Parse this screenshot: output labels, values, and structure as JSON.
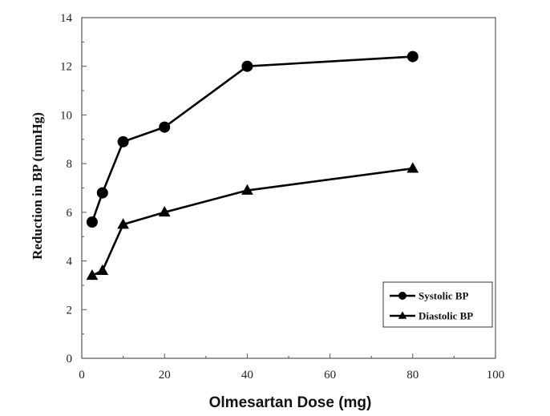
{
  "chart_data": {
    "type": "line",
    "title": "",
    "xlabel": "Olmesartan Dose (mg)",
    "ylabel": "Reduction in BP (mmHg)",
    "xlim": [
      0,
      100
    ],
    "ylim": [
      0,
      14
    ],
    "xticks": [
      0,
      20,
      40,
      60,
      80,
      100
    ],
    "yticks": [
      0,
      2,
      4,
      6,
      8,
      10,
      12,
      14
    ],
    "grid": false,
    "legend_position": "bottom-right",
    "series": [
      {
        "name": "Systolic BP",
        "marker": "circle",
        "color": "#000000",
        "x": [
          2.5,
          5,
          10,
          20,
          40,
          80
        ],
        "y": [
          5.6,
          6.8,
          8.9,
          9.5,
          12.0,
          12.4
        ]
      },
      {
        "name": "Diastolic BP",
        "marker": "triangle",
        "color": "#000000",
        "x": [
          2.5,
          5,
          10,
          20,
          40,
          80
        ],
        "y": [
          3.4,
          3.6,
          5.5,
          6.0,
          6.9,
          7.8
        ]
      }
    ]
  }
}
